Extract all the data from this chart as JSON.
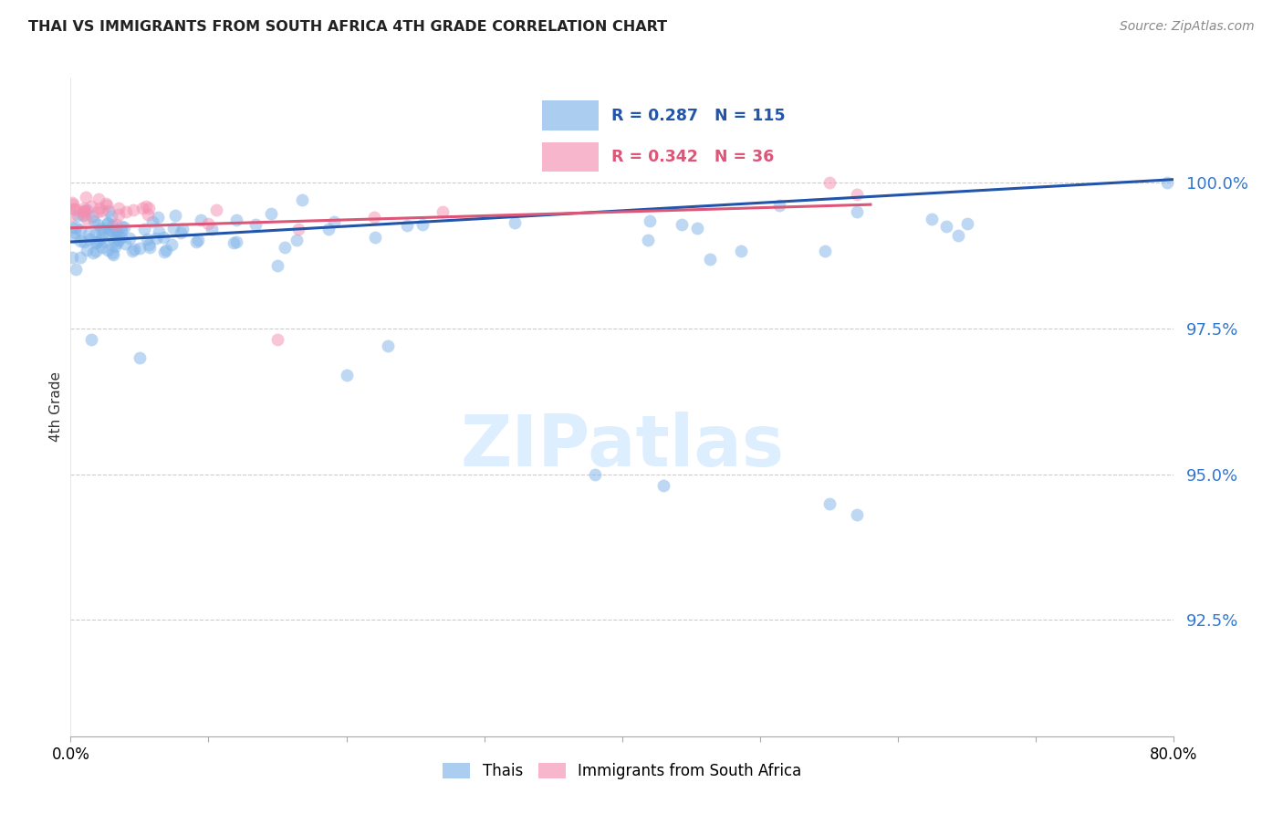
{
  "title": "THAI VS IMMIGRANTS FROM SOUTH AFRICA 4TH GRADE CORRELATION CHART",
  "source": "Source: ZipAtlas.com",
  "ylabel": "4th Grade",
  "y_tick_values": [
    92.5,
    95.0,
    97.5,
    100.0
  ],
  "xlim": [
    0.0,
    80.0
  ],
  "ylim": [
    90.5,
    101.8
  ],
  "legend_thai": "Thais",
  "legend_immig": "Immigrants from South Africa",
  "R_thai": 0.287,
  "N_thai": 115,
  "R_immig": 0.342,
  "N_immig": 36,
  "blue_color": "#7fb3e8",
  "pink_color": "#f48fb1",
  "blue_line_color": "#2255aa",
  "pink_line_color": "#dd5577",
  "blue_text_color": "#2255aa",
  "pink_text_color": "#dd5577",
  "ytick_color": "#3377cc",
  "watermark_color": "#ddeeff"
}
